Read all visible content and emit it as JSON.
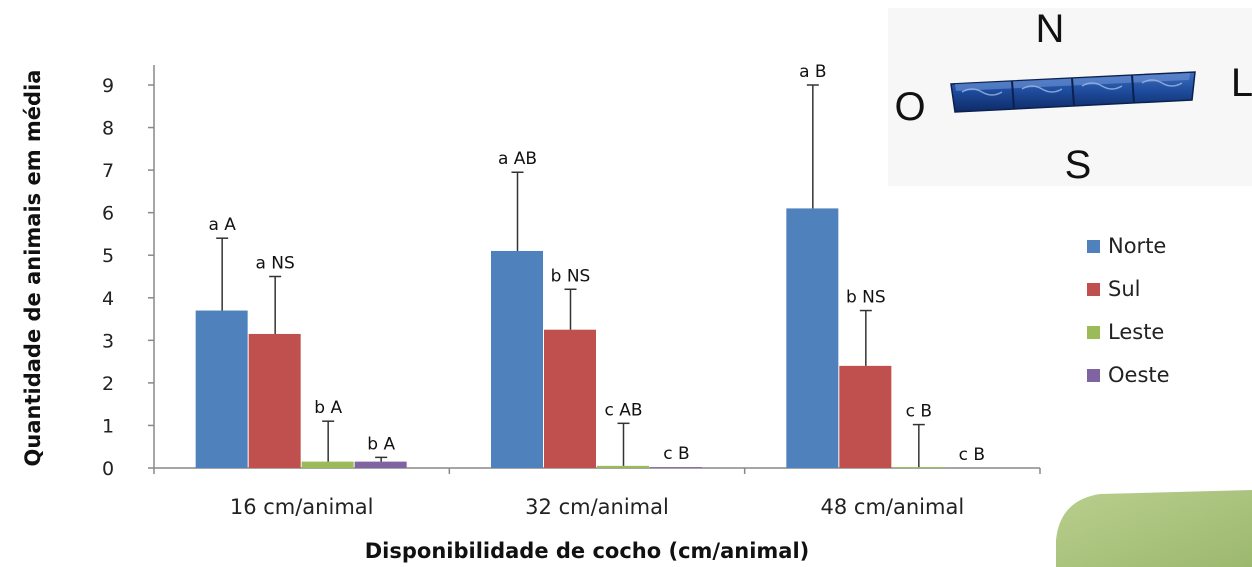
{
  "chart_data": {
    "type": "bar",
    "xlabel": "Disponibilidade de cocho (cm/animal)",
    "ylabel": "Quantidade de animais em média",
    "ylim": [
      0,
      9
    ],
    "yticks": [
      0,
      1,
      2,
      3,
      4,
      5,
      6,
      7,
      8,
      9
    ],
    "categories": [
      "16 cm/animal",
      "32 cm/animal",
      "48 cm/animal"
    ],
    "legend_position": "right",
    "grid": false,
    "series": [
      {
        "name": "Norte",
        "color": "#4f81bd",
        "values": [
          3.7,
          5.1,
          6.1
        ],
        "errors": [
          1.7,
          1.85,
          2.9
        ],
        "labels": [
          "a A",
          "a AB",
          "a B"
        ]
      },
      {
        "name": "Sul",
        "color": "#c0504d",
        "values": [
          3.15,
          3.25,
          2.4
        ],
        "errors": [
          1.35,
          0.95,
          1.3
        ],
        "labels": [
          "a NS",
          "b NS",
          "b NS"
        ]
      },
      {
        "name": "Leste",
        "color": "#9bbb59",
        "values": [
          0.15,
          0.05,
          0.02
        ],
        "errors": [
          0.95,
          1.0,
          1.0
        ],
        "labels": [
          "b A",
          "c AB",
          "c B"
        ]
      },
      {
        "name": "Oeste",
        "color": "#8064a2",
        "values": [
          0.15,
          0.02,
          0.0
        ],
        "errors": [
          0.1,
          0.0,
          0.0
        ],
        "labels": [
          "b A",
          "c B",
          "c B"
        ]
      }
    ]
  },
  "compass": {
    "north": "N",
    "south": "S",
    "west": "O",
    "east": "L"
  }
}
